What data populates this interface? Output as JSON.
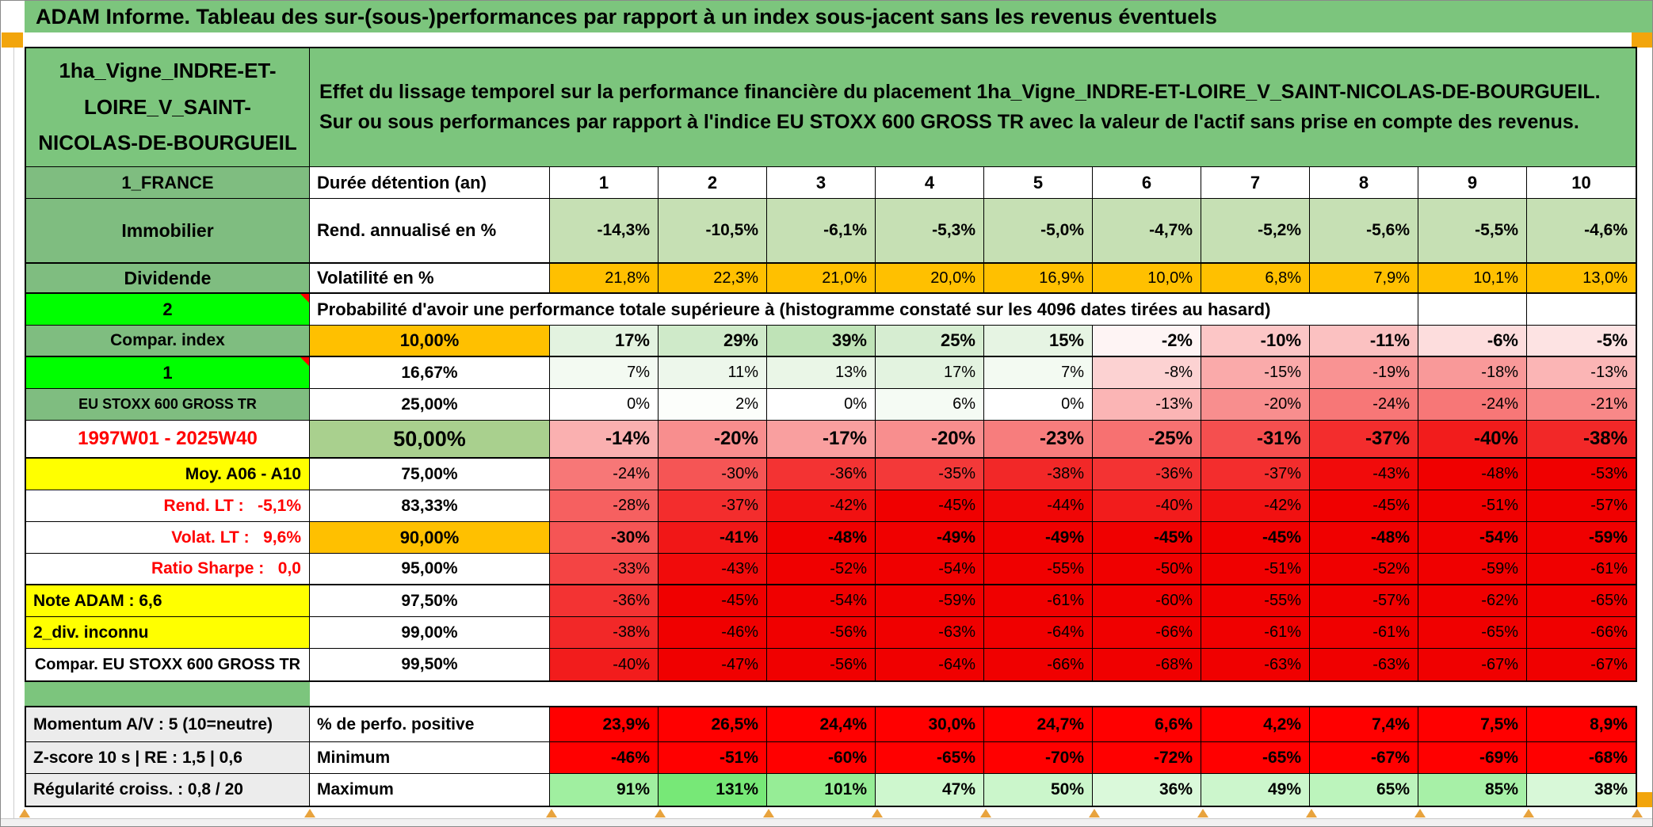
{
  "title": "ADAM Informe. Tableau des sur-(sous-)performances par rapport à un index sous-jacent sans les revenus éventuels",
  "colors": {
    "title_green": "#7CC57D",
    "header_green": "#7FBD80",
    "bright_green": "#00FF00",
    "orange": "#FFC000",
    "yellow": "#FFFF00",
    "rendement_row_green": "#C6E0B4",
    "prob50_green": "#A9D08E",
    "summary_red": "#FF0000",
    "label_gray": "#ECECEC",
    "accent_orange": "#F2A50C"
  },
  "header": {
    "asset_name": "1ha_Vigne_INDRE-ET-LOIRE_V_SAINT-NICOLAS-DE-BOURGUEIL",
    "description": "Effet du lissage temporel sur la performance financière du placement 1ha_Vigne_INDRE-ET-LOIRE_V_SAINT-NICOLAS-DE-BOURGUEIL. Sur ou sous performances par rapport à l'indice EU STOXX 600 GROSS TR avec la valeur de l'actif sans prise en compte des revenus."
  },
  "info": {
    "duree": {
      "a": "1_FRANCE",
      "b": "Durée détention (an)",
      "values": [
        "1",
        "2",
        "3",
        "4",
        "5",
        "6",
        "7",
        "8",
        "9",
        "10"
      ]
    },
    "rendement": {
      "a": "Immobilier",
      "b": "Rend. annualisé en %",
      "values": [
        "-14,3%",
        "-10,5%",
        "-6,1%",
        "-5,3%",
        "-5,0%",
        "-4,7%",
        "-5,2%",
        "-5,6%",
        "-5,5%",
        "-4,6%"
      ]
    },
    "volatilite": {
      "a": "Dividende",
      "b": "Volatilité en %",
      "values": [
        "21,8%",
        "22,3%",
        "21,0%",
        "20,0%",
        "16,9%",
        "10,0%",
        "6,8%",
        "7,9%",
        "10,1%",
        "13,0%"
      ]
    }
  },
  "probability": {
    "corner": "2",
    "heading": "Probabilité d'avoir une performance totale supérieure à (histogramme constaté sur les 4096 dates tirées au hasard)",
    "rows": [
      {
        "a": "Compar. index",
        "b": "10,00%",
        "values": [
          "17%",
          "29%",
          "39%",
          "25%",
          "15%",
          "-2%",
          "-10%",
          "-11%",
          "-6%",
          "-5%"
        ],
        "colors": [
          "#E3F3E0",
          "#CFEAC9",
          "#BFE3B7",
          "#D6EDD1",
          "#E6F4E3",
          "#FEF4F4",
          "#FCC6C6",
          "#FBC1C1",
          "#FDDDDD",
          "#FDE3E3"
        ]
      },
      {
        "a": "1",
        "b": "16,67%",
        "values": [
          "7%",
          "11%",
          "13%",
          "17%",
          "7%",
          "-8%",
          "-15%",
          "-19%",
          "-18%",
          "-13%"
        ],
        "colors": [
          "#F3FAF2",
          "#EDF7EB",
          "#EAF6E7",
          "#E3F3E0",
          "#F3FAF2",
          "#FCD2D2",
          "#FAAAAA",
          "#F99393",
          "#F99999",
          "#FBB5B5"
        ]
      },
      {
        "a": "EU STOXX 600 GROSS TR",
        "b": "25,00%",
        "values": [
          "0%",
          "2%",
          "0%",
          "6%",
          "0%",
          "-13%",
          "-20%",
          "-24%",
          "-24%",
          "-21%"
        ],
        "colors": [
          "#FFFFFF",
          "#FCFEFB",
          "#FFFFFF",
          "#F5FBF4",
          "#FFFFFF",
          "#FBB5B5",
          "#F88E8E",
          "#F77777",
          "#F77777",
          "#F88888"
        ]
      },
      {
        "a": "1997W01 - 2025W40",
        "b": "50,00%",
        "values": [
          "-14%",
          "-20%",
          "-17%",
          "-20%",
          "-23%",
          "-25%",
          "-31%",
          "-37%",
          "-40%",
          "-38%"
        ],
        "colors": [
          "#FAB0B0",
          "#F88E8E",
          "#F99F9F",
          "#F88E8E",
          "#F77D7D",
          "#F77171",
          "#F54F4F",
          "#F32D2D",
          "#F21C1C",
          "#F22828"
        ]
      },
      {
        "a": "Moy. A06 - A10",
        "b": "75,00%",
        "values": [
          "-24%",
          "-30%",
          "-36%",
          "-35%",
          "-38%",
          "-36%",
          "-37%",
          "-43%",
          "-48%",
          "-53%"
        ],
        "colors": [
          "#F77777",
          "#F55555",
          "#F33333",
          "#F33939",
          "#F22828",
          "#F33333",
          "#F32D2D",
          "#F10B0B",
          "#F00000",
          "#F00000"
        ]
      },
      {
        "a": "Rend. LT :   -5,1%",
        "b": "83,33%",
        "values": [
          "-28%",
          "-37%",
          "-42%",
          "-45%",
          "-44%",
          "-40%",
          "-42%",
          "-45%",
          "-51%",
          "-57%"
        ],
        "colors": [
          "#F66060",
          "#F32D2D",
          "#F11111",
          "#F00000",
          "#F00606",
          "#F21C1C",
          "#F11111",
          "#F00000",
          "#F00000",
          "#F00000"
        ]
      },
      {
        "a": "Volat. LT :   9,6%",
        "b": "90,00%",
        "values": [
          "-30%",
          "-41%",
          "-48%",
          "-49%",
          "-49%",
          "-45%",
          "-45%",
          "-48%",
          "-54%",
          "-59%"
        ],
        "colors": [
          "#F55555",
          "#F11717",
          "#F00000",
          "#F00000",
          "#F00000",
          "#F00000",
          "#F00000",
          "#F00000",
          "#F00000",
          "#F00000"
        ]
      },
      {
        "a": "Ratio Sharpe :   0,0",
        "b": "95,00%",
        "values": [
          "-33%",
          "-43%",
          "-52%",
          "-54%",
          "-55%",
          "-50%",
          "-51%",
          "-52%",
          "-59%",
          "-61%"
        ],
        "colors": [
          "#F44444",
          "#F10B0B",
          "#F00000",
          "#F00000",
          "#F00000",
          "#F00000",
          "#F00000",
          "#F00000",
          "#F00000",
          "#F00000"
        ]
      },
      {
        "a": "Note ADAM : 6,6",
        "b": "97,50%",
        "values": [
          "-36%",
          "-45%",
          "-54%",
          "-59%",
          "-61%",
          "-60%",
          "-55%",
          "-57%",
          "-62%",
          "-65%"
        ],
        "colors": [
          "#F33333",
          "#F00000",
          "#F00000",
          "#F00000",
          "#F00000",
          "#F00000",
          "#F00000",
          "#F00000",
          "#F00000",
          "#F00000"
        ]
      },
      {
        "a": "2_div. inconnu",
        "b": "99,00%",
        "values": [
          "-38%",
          "-46%",
          "-56%",
          "-63%",
          "-64%",
          "-66%",
          "-61%",
          "-61%",
          "-65%",
          "-66%"
        ],
        "colors": [
          "#F22828",
          "#F00000",
          "#F00000",
          "#F00000",
          "#F00000",
          "#F00000",
          "#F00000",
          "#F00000",
          "#F00000",
          "#F00000"
        ]
      },
      {
        "a": "Compar. EU STOXX 600 GROSS TR",
        "b": "99,50%",
        "values": [
          "-40%",
          "-47%",
          "-56%",
          "-64%",
          "-66%",
          "-68%",
          "-63%",
          "-63%",
          "-67%",
          "-67%"
        ],
        "colors": [
          "#F21C1C",
          "#F00000",
          "#F00000",
          "#F00000",
          "#F00000",
          "#F00000",
          "#F00000",
          "#F00000",
          "#F00000",
          "#F00000"
        ]
      }
    ]
  },
  "summary": {
    "rows": [
      {
        "a": "Momentum A/V : 5 (10=neutre)",
        "b": "% de perfo. positive",
        "values": [
          "23,9%",
          "26,5%",
          "24,4%",
          "30,0%",
          "24,7%",
          "6,6%",
          "4,2%",
          "7,4%",
          "7,5%",
          "8,9%"
        ],
        "colors": [
          "#FF0000",
          "#FF0000",
          "#FF0000",
          "#FF0000",
          "#FF0000",
          "#FF0000",
          "#FF0000",
          "#FF0000",
          "#FF0000",
          "#FF0000"
        ]
      },
      {
        "a": "Z-score 10 s | RE : 1,5 | 0,6",
        "b": "Minimum",
        "values": [
          "-46%",
          "-51%",
          "-60%",
          "-65%",
          "-70%",
          "-72%",
          "-65%",
          "-67%",
          "-69%",
          "-68%"
        ],
        "colors": [
          "#FF0000",
          "#FF0000",
          "#FF0000",
          "#FF0000",
          "#FF0000",
          "#FF0000",
          "#FF0000",
          "#FF0000",
          "#FF0000",
          "#FF0000"
        ]
      },
      {
        "a": "Régularité croiss. : 0,8 / 20",
        "b": "Maximum",
        "values": [
          "91%",
          "131%",
          "101%",
          "47%",
          "50%",
          "36%",
          "49%",
          "65%",
          "85%",
          "38%"
        ],
        "colors": [
          "#A0EFA0",
          "#77E877",
          "#96ED96",
          "#CEF7CE",
          "#CBF6CB",
          "#DAF9DA",
          "#CCF6CC",
          "#BCF4BC",
          "#A7F0A7",
          "#D8F8D8"
        ]
      }
    ]
  }
}
